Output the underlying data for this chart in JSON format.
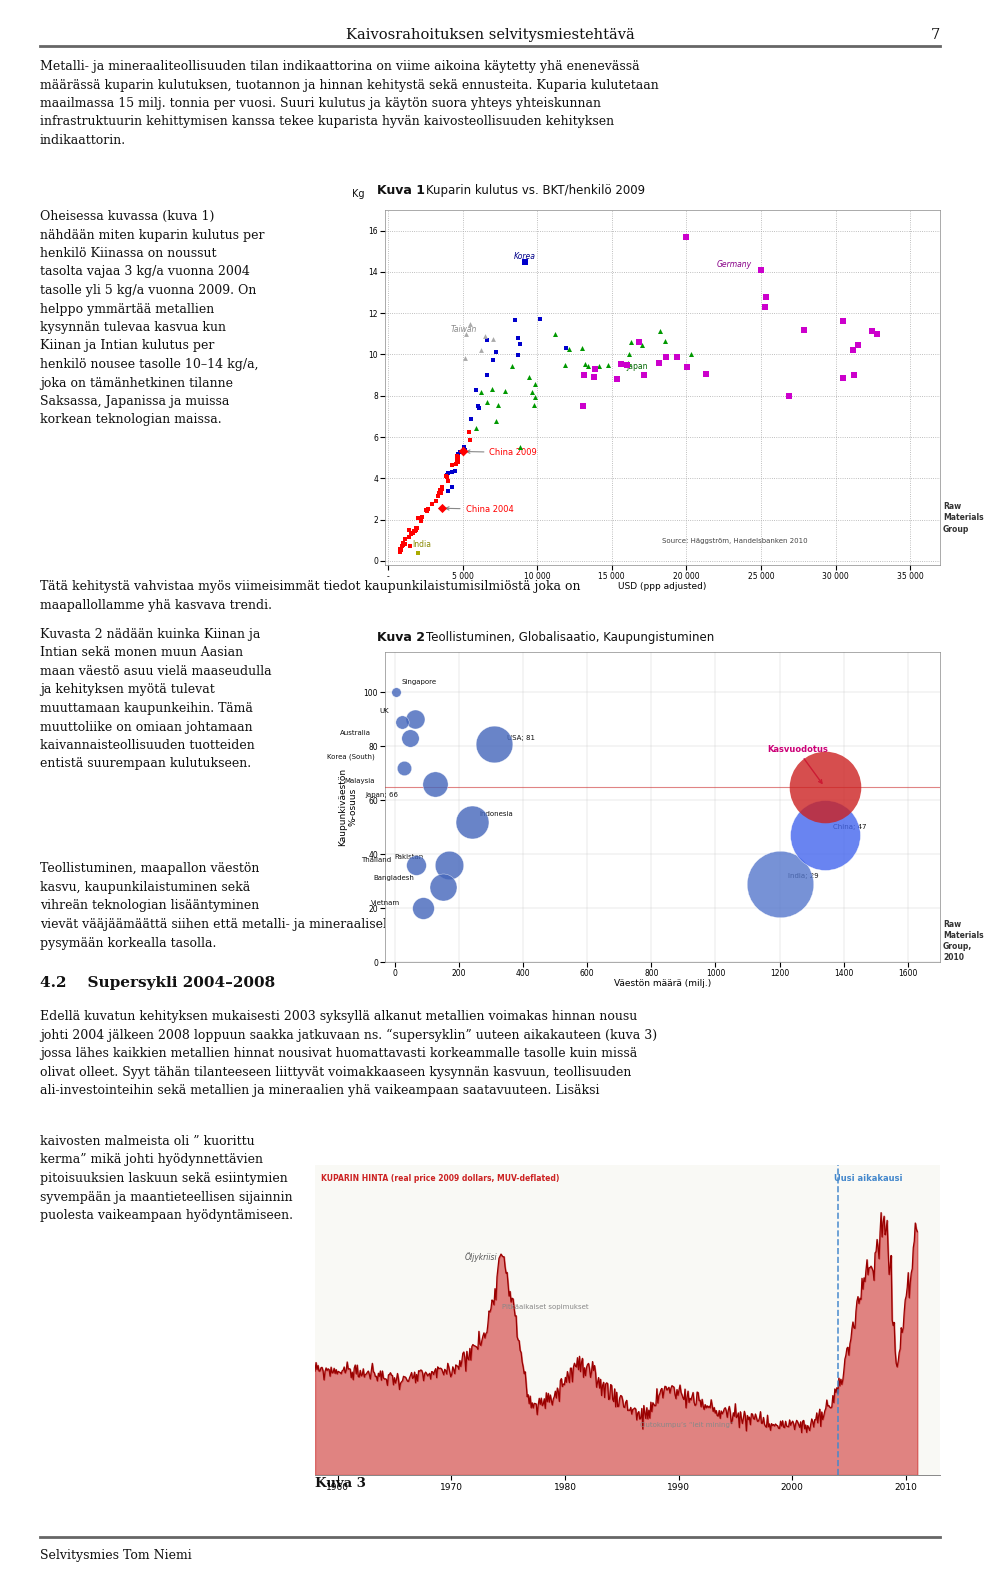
{
  "page_title": "Kaivosrahoituksen selvitysmiestehtävä",
  "page_number": "7",
  "footer_text": "Selvitysmies Tom Niemi",
  "body_text_1": "Metalli- ja mineraaliteollisuuden tilan indikaattorina on viime aikoina käytetty yhä enenevässä\nmäärässä kuparin kulutuksen, tuotannon ja hinnan kehitystä sekä ennusteita. Kuparia kulutetaan\nmaailmassa 15 milj. tonnia per vuosi. Suuri kulutus ja käytön suora yhteys yhteiskunnan\ninfrastruktuurin kehittymisen kanssa tekee kuparista hyvän kaivosteollisuuden kehityksen\nindikaattorin.",
  "left_col_1": "Oheisessa kuvassa (kuva 1)\nnähdään miten kuparin kulutus per\nhenkilö Kiinassa on noussut\ntasolta vajaa 3 kg/a vuonna 2004\ntasolle yli 5 kg/a vuonna 2009. On\nhelppo ymmärtää metallien\nkysynnän tulevaa kasvua kun\nKiinan ja Intian kulutus per\nhenkilö nousee tasolle 10–14 kg/a,\njoka on tämänhetkinen tilanne\nSaksassa, Japanissa ja muissa\nkorkean teknologian maissa.",
  "kuva1_title": "Kuva 1",
  "kuva1_subtitle": "Kuparin kulutus vs. BKT/henkilö 2009",
  "kuva1_xlabel": "USD (ppp adjusted)",
  "kuva1_ylabel": "Kg",
  "kuva1_source": "Source: Häggström, Handelsbanken 2010",
  "kuva1_credit": "Raw\nMaterials\nGroup",
  "body_text_2a": "Tätä kehitystä vahvistaa myös viimeisimmät tiedot kaupunkilaistumisilmiöstä joka on\nmaapallollamme yhä kasvava trendi.",
  "left_col_2": "Kuvasta 2 nädään kuinka Kiinan ja\nIntian sekä monen muun Aasian\nmaan väestö asuu vielä maaseudulla\nja kehityksen myötä tulevat\nmuuttamaan kaupunkeihin. Tämä\nmuuttoliike on omiaan johtamaan\nkaivannaisteollisuuden tuotteiden\nentistä suurempaan kulutukseen.",
  "kuva2_title": "Kuva 2",
  "kuva2_subtitle": "Teollistuminen, Globalisaatio, Kaupungistuminen",
  "kuva2_xlabel": "Väestön määrä (milj.)",
  "kuva2_ylabel": "Kaupunkiväestön\n%-osuus",
  "kuva2_credit": "Raw\nMaterials\nGroup,\n2010",
  "left_col_3a": "Teollistuminen, maapallon väestön\nkasvu, kaupunkilaistuminen sekä\nvihreän teknologian lisääntyminen",
  "left_col_3b": "vievät vääjäämäättä siihen että metalli- ja mineraalisektorin kysyntä tulee lähivuosikymmeninä\npysymään korkealla tasolla.",
  "section42": "4.2    Supersykli 2004–2008",
  "body_text_3a": "Edellä kuvatun kehityksen mukaisesti 2003 syksyllä alkanut metallien voimakas hinnan nousu\njohti 2004 jälkeen 2008 loppuun saakka jatkuvaan ns. “supersyklin” uuteen aikakauteen (kuva 3)\njossa lähes kaikkien metallien hinnat nousivat huomattavasti korkeammalle tasolle kuin missä\nolivat olleet. Syyt tähän tilanteeseen liittyvät voimakkaaseen kysynnän kasvuun, teollisuuden\nali-investointeihin sekä metallien ja mineraalien yhä vaikeampaan saatavuuteen. Lisäksi",
  "left_col_4": "kaivosten malmeista oli ” kuorittu\nkerma” mikä johti hyödynnettävien\npitoisuuksien laskuun sekä esiintymien\nsyvempään ja maantieteellisen sijainnin\npuolesta vaikeampaan hyödyntämiseen.",
  "kuva3_title": "Kuva 3",
  "kuva3_label": "KUPARIN HINTA (real price 2009 dollars, MUV-deflated)",
  "kuva3_label2": "Uusi aikakausi",
  "kuva3_note1": "Öljykriisi",
  "kuva3_note2": "Pitkäaikaiset sopimukset",
  "kuva3_note3": "Outokumpu’s “leit mining”",
  "bg": "#ffffff",
  "line_color": "#666666",
  "text_color": "#111111"
}
